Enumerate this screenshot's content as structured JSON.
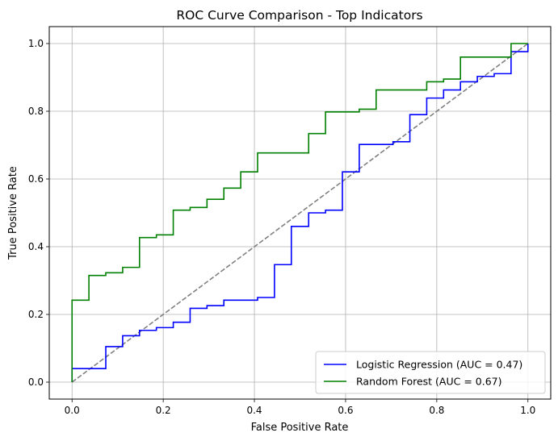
{
  "chart_data": {
    "type": "line",
    "title": "ROC Curve Comparison - Top Indicators",
    "xlabel": "False Positive Rate",
    "ylabel": "True Positive Rate",
    "xlim": [
      -0.05,
      1.05
    ],
    "ylim": [
      -0.05,
      1.05
    ],
    "xticks": [
      0.0,
      0.2,
      0.4,
      0.6,
      0.8,
      1.0
    ],
    "yticks": [
      0.0,
      0.2,
      0.4,
      0.6,
      0.8,
      1.0
    ],
    "xtick_labels": [
      "0.0",
      "0.2",
      "0.4",
      "0.6",
      "0.8",
      "1.0"
    ],
    "ytick_labels": [
      "0.0",
      "0.2",
      "0.4",
      "0.6",
      "0.8",
      "1.0"
    ],
    "grid": true,
    "legend_position": "lower-right",
    "series": [
      {
        "name": "Logistic Regression (AUC = 0.47)",
        "color": "#0000ff",
        "step": true,
        "x": [
          0.0,
          0.0,
          0.074,
          0.074,
          0.111,
          0.111,
          0.148,
          0.148,
          0.185,
          0.185,
          0.222,
          0.222,
          0.259,
          0.259,
          0.296,
          0.296,
          0.333,
          0.333,
          0.407,
          0.407,
          0.444,
          0.444,
          0.481,
          0.481,
          0.519,
          0.519,
          0.556,
          0.556,
          0.593,
          0.593,
          0.63,
          0.63,
          0.704,
          0.704,
          0.741,
          0.741,
          0.778,
          0.778,
          0.815,
          0.815,
          0.852,
          0.852,
          0.889,
          0.889,
          0.926,
          0.926,
          0.963,
          0.963,
          1.0,
          1.0
        ],
        "y": [
          0.0,
          0.04,
          0.04,
          0.105,
          0.105,
          0.137,
          0.137,
          0.153,
          0.153,
          0.161,
          0.161,
          0.177,
          0.177,
          0.218,
          0.218,
          0.226,
          0.226,
          0.242,
          0.242,
          0.25,
          0.25,
          0.347,
          0.347,
          0.46,
          0.46,
          0.5,
          0.5,
          0.508,
          0.508,
          0.621,
          0.621,
          0.702,
          0.702,
          0.71,
          0.71,
          0.79,
          0.79,
          0.839,
          0.839,
          0.863,
          0.863,
          0.887,
          0.887,
          0.903,
          0.903,
          0.911,
          0.911,
          0.976,
          0.976,
          1.0
        ]
      },
      {
        "name": "Random Forest (AUC = 0.67)",
        "color": "#008000",
        "step": true,
        "x": [
          0.0,
          0.0,
          0.037,
          0.037,
          0.074,
          0.074,
          0.111,
          0.111,
          0.148,
          0.148,
          0.185,
          0.185,
          0.222,
          0.222,
          0.259,
          0.259,
          0.296,
          0.296,
          0.333,
          0.333,
          0.37,
          0.37,
          0.407,
          0.407,
          0.519,
          0.519,
          0.556,
          0.556,
          0.63,
          0.63,
          0.667,
          0.667,
          0.778,
          0.778,
          0.815,
          0.815,
          0.852,
          0.852,
          0.963,
          0.963,
          1.0,
          1.0
        ],
        "y": [
          0.0,
          0.242,
          0.242,
          0.315,
          0.315,
          0.323,
          0.323,
          0.339,
          0.339,
          0.427,
          0.427,
          0.435,
          0.435,
          0.508,
          0.508,
          0.516,
          0.516,
          0.54,
          0.54,
          0.573,
          0.573,
          0.621,
          0.621,
          0.677,
          0.677,
          0.734,
          0.734,
          0.798,
          0.798,
          0.806,
          0.806,
          0.863,
          0.863,
          0.887,
          0.887,
          0.895,
          0.895,
          0.96,
          0.96,
          1.0,
          1.0,
          1.0
        ]
      },
      {
        "name": "",
        "color": "#808080",
        "dashed": true,
        "x": [
          0.0,
          1.0
        ],
        "y": [
          0.0,
          1.0
        ]
      }
    ]
  }
}
